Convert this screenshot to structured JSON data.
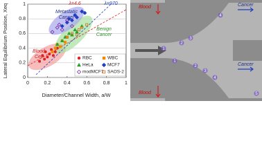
{
  "chart_data": {
    "type": "scatter",
    "x_label": "Diameter/Channel Width, a/W",
    "y_label": "Lateral Equilibrium Position, Xeq",
    "xlim": [
      0,
      1
    ],
    "ylim": [
      0,
      1
    ],
    "xticks": [
      0,
      0.2,
      0.4,
      0.6,
      0.8,
      1
    ],
    "yticks": [
      0,
      0.2,
      0.4,
      0.6,
      0.8,
      1
    ],
    "grid": true,
    "legend": "lower right",
    "annotations": [
      "Metastatic",
      "Cancer",
      "Benign",
      "Cancer",
      "Blood",
      "Cell",
      "λ=4.6",
      "λ=970"
    ],
    "series": [
      {
        "name": "RBC",
        "color": "#e02020",
        "marker": "circle",
        "x": [
          0.12,
          0.15,
          0.17,
          0.18,
          0.2,
          0.22,
          0.24,
          0.26,
          0.28,
          0.3
        ],
        "values": [
          0.22,
          0.3,
          0.25,
          0.35,
          0.28,
          0.32,
          0.38,
          0.3,
          0.35,
          0.4
        ]
      },
      {
        "name": "WBC",
        "color": "#f08a00",
        "marker": "square",
        "x": [
          0.25,
          0.28,
          0.3,
          0.33,
          0.35,
          0.38,
          0.4
        ],
        "values": [
          0.35,
          0.4,
          0.45,
          0.42,
          0.5,
          0.48,
          0.55
        ]
      },
      {
        "name": "HeLa",
        "color": "#2aa02a",
        "marker": "triangle",
        "x": [
          0.3,
          0.35,
          0.38,
          0.42,
          0.45,
          0.48,
          0.5,
          0.55
        ],
        "values": [
          0.45,
          0.5,
          0.55,
          0.6,
          0.58,
          0.65,
          0.62,
          0.7
        ]
      },
      {
        "name": "MCF7",
        "color": "#1f3fbf",
        "marker": "diamond",
        "x": [
          0.35,
          0.4,
          0.42,
          0.45,
          0.48,
          0.5,
          0.55,
          0.58
        ],
        "values": [
          0.7,
          0.75,
          0.8,
          0.78,
          0.85,
          0.82,
          0.9,
          0.88
        ]
      },
      {
        "name": "modMCF7",
        "color": "#7a2aa8",
        "marker": "diamond-open",
        "x": [
          0.25,
          0.3,
          0.32,
          0.35,
          0.4,
          0.45
        ],
        "values": [
          0.62,
          0.68,
          0.72,
          0.65,
          0.78,
          0.7
        ]
      },
      {
        "name": "SAOS-2",
        "color": "#d07020",
        "marker": "square-open",
        "x": [
          0.4,
          0.45,
          0.5,
          0.52,
          0.55,
          0.6
        ],
        "values": [
          0.55,
          0.6,
          0.58,
          0.65,
          0.68,
          0.72
        ]
      }
    ]
  },
  "micrograph": {
    "labels": [
      "Blood",
      "Cancer",
      "Cancer",
      "Blood"
    ],
    "markers": [
      "1",
      "2",
      "3",
      "4",
      "5"
    ]
  }
}
